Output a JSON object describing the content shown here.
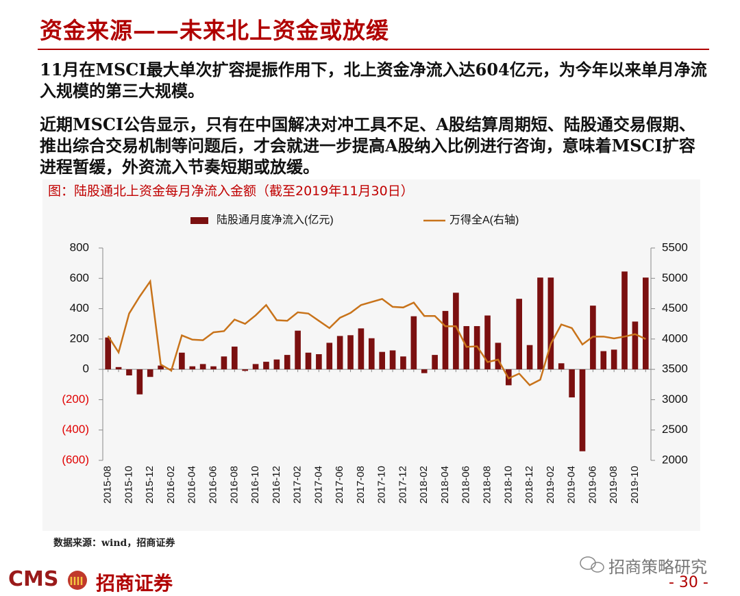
{
  "page": {
    "title": "资金来源——未来北上资金或放缓",
    "paragraphs": [
      "11月在MSCI最大单次扩容提振作用下，北上资金净流入达604亿元，为今年以来单月净流入规模的第三大规模。",
      "近期MSCI公告显示，只有在中国解决对冲工具不足、A股结算周期短、陆股通交易假期、推出综合交易机制等问题后，才会就进一步提高A股纳入比例进行咨询，意味着MSCI扩容进程暂缓，外资流入节奏短期或放缓。"
    ],
    "caption": "图：陆股通北上资金每月净流入金额（截至2019年11月30日）",
    "source": "数据来源：wind，招商证券",
    "watermark": "招商策略研究",
    "logo_latin": "CMS",
    "logo_cn": "招商证券",
    "page_number": "- 30 -"
  },
  "chart_data": {
    "type": "bar",
    "categories": [
      "2015-08",
      null,
      "2015-10",
      null,
      "2015-12",
      null,
      "2016-02",
      null,
      "2016-04",
      null,
      "2016-06",
      null,
      "2016-08",
      null,
      "2016-10",
      null,
      "2016-12",
      null,
      "2017-02",
      null,
      "2017-04",
      null,
      "2017-06",
      null,
      "2017-08",
      null,
      "2017-10",
      null,
      "2017-12",
      null,
      "2018-02",
      null,
      "2018-04",
      null,
      "2018-06",
      null,
      "2018-08",
      null,
      "2018-10",
      null,
      "2018-12",
      null,
      "2019-02",
      null,
      "2019-04",
      null,
      "2019-06",
      null,
      "2019-08",
      null,
      "2019-10",
      null
    ],
    "series": [
      {
        "name": "陆股通月度净流入(亿元)",
        "type": "bar",
        "color": "#7b1010",
        "values": [
          210,
          15,
          -40,
          -165,
          -50,
          25,
          5,
          110,
          20,
          35,
          20,
          85,
          150,
          -10,
          35,
          50,
          65,
          95,
          255,
          110,
          100,
          175,
          220,
          225,
          270,
          205,
          115,
          125,
          85,
          350,
          -25,
          95,
          385,
          505,
          285,
          285,
          355,
          175,
          -105,
          465,
          160,
          605,
          605,
          40,
          -185,
          -540,
          420,
          120,
          130,
          645,
          315,
          605
        ]
      },
      {
        "name": "万得全A(右轴)",
        "type": "line",
        "axis": "y2",
        "color": "#c8731a",
        "values": [
          4050,
          3780,
          4420,
          4700,
          4950,
          3580,
          3480,
          4060,
          3990,
          3980,
          4110,
          4130,
          4320,
          4250,
          4390,
          4560,
          4310,
          4300,
          4440,
          4420,
          4300,
          4180,
          4350,
          4430,
          4560,
          4610,
          4660,
          4530,
          4520,
          4600,
          4380,
          4380,
          4210,
          4210,
          3870,
          3880,
          3620,
          3660,
          3350,
          3430,
          3240,
          3330,
          3920,
          4240,
          4180,
          3910,
          4040,
          4040,
          4010,
          4040,
          4080,
          4000
        ]
      }
    ],
    "ylim": [
      -600,
      800
    ],
    "yticks": [
      800,
      600,
      400,
      200,
      0,
      {
        "value": -200,
        "label": "(200)"
      },
      {
        "value": -400,
        "label": "(400)"
      },
      {
        "value": -600,
        "label": "(600)"
      }
    ],
    "negative_tick_color": "#e00000",
    "y2lim": [
      2000,
      5500
    ],
    "y2ticks": [
      5500,
      5000,
      4500,
      4000,
      3500,
      3000,
      2500,
      2000
    ],
    "legend": "top"
  }
}
